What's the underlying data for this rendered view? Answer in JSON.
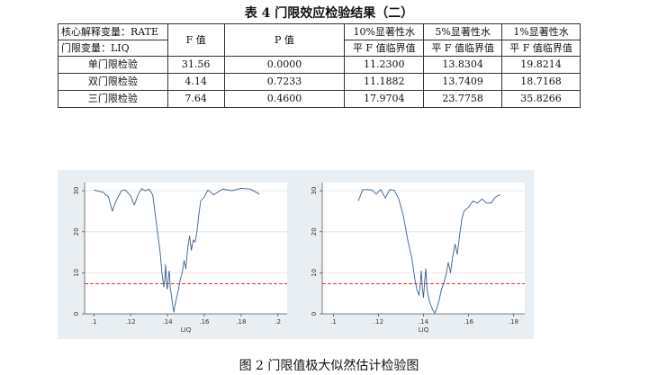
{
  "table": {
    "title": "表 4  门限效应检验结果（二）",
    "header_col1_line1": "核心解释变量：RATE",
    "header_col1_line2": "门限变量：LIQ",
    "columns": [
      "F 值",
      "P 值"
    ],
    "crit_headers": [
      {
        "line1": "10%显著性水",
        "line2": "平 F 值临界值"
      },
      {
        "line1": "5%显著性水",
        "line2": "平 F 值临界值"
      },
      {
        "line1": "1%显著性水",
        "line2": "平 F 值临界值"
      }
    ],
    "rows": [
      {
        "label": "单门限检验",
        "f": "31.56",
        "p": "0.0000",
        "c10": "11.2300",
        "c5": "13.8304",
        "c1": "19.8214"
      },
      {
        "label": "双门限检验",
        "f": "4.14",
        "p": "0.7233",
        "c10": "11.1882",
        "c5": "13.7409",
        "c1": "18.7168"
      },
      {
        "label": "三门限检验",
        "f": "7.64",
        "p": "0.4600",
        "c10": "17.9704",
        "c5": "23.7758",
        "c1": "35.8266"
      }
    ]
  },
  "figure": {
    "caption": "图 2  门限值极大似然估计检验图"
  },
  "chart_data": [
    {
      "type": "line",
      "title": "",
      "xlabel": "LIQ",
      "ylabel": "",
      "xlim": [
        0.095,
        0.205
      ],
      "ylim": [
        0,
        32
      ],
      "xticks": [
        ".1",
        ".12",
        ".14",
        ".16",
        ".18",
        ".2"
      ],
      "xtick_values": [
        0.1,
        0.12,
        0.14,
        0.16,
        0.18,
        0.2
      ],
      "yticks": [
        "0",
        "10",
        "20",
        "30"
      ],
      "ytick_values": [
        0,
        10,
        20,
        30
      ],
      "grid": "horizontal",
      "reference_line": {
        "y": 7.35,
        "color": "#cc2222",
        "style": "dashed"
      },
      "line_color": "#3a5f8a",
      "x": [
        0.1,
        0.105,
        0.108,
        0.11,
        0.112,
        0.115,
        0.117,
        0.12,
        0.122,
        0.124,
        0.126,
        0.128,
        0.13,
        0.132,
        0.134,
        0.136,
        0.137,
        0.138,
        0.1385,
        0.139,
        0.1395,
        0.14,
        0.1405,
        0.141,
        0.1415,
        0.142,
        0.143,
        0.1435,
        0.144,
        0.145,
        0.146,
        0.147,
        0.148,
        0.149,
        0.15,
        0.151,
        0.152,
        0.153,
        0.154,
        0.155,
        0.156,
        0.157,
        0.158,
        0.16,
        0.162,
        0.165,
        0.17,
        0.175,
        0.18,
        0.185,
        0.19
      ],
      "y": [
        30.2,
        29.6,
        28.5,
        25.0,
        27.5,
        30.0,
        30.2,
        28.8,
        26.5,
        29.0,
        30.5,
        30.0,
        30.4,
        29.0,
        22.0,
        15.0,
        10.0,
        6.5,
        8.5,
        12.0,
        7.0,
        6.0,
        9.0,
        10.5,
        6.5,
        5.0,
        1.5,
        0.4,
        2.0,
        4.0,
        6.0,
        8.5,
        10.0,
        13.0,
        11.0,
        16.0,
        19.0,
        15.5,
        18.0,
        17.5,
        20.0,
        24.0,
        27.5,
        28.5,
        30.2,
        29.0,
        30.4,
        30.0,
        30.6,
        30.4,
        29.2
      ]
    },
    {
      "type": "line",
      "title": "",
      "xlabel": "LIQ",
      "ylabel": "",
      "xlim": [
        0.095,
        0.185
      ],
      "ylim": [
        0,
        32
      ],
      "xticks": [
        ".1",
        ".12",
        ".14",
        ".16",
        ".18"
      ],
      "xtick_values": [
        0.1,
        0.12,
        0.14,
        0.16,
        0.18
      ],
      "yticks": [
        "0",
        "10",
        "20",
        "30"
      ],
      "ytick_values": [
        0,
        10,
        20,
        30
      ],
      "grid": "horizontal",
      "reference_line": {
        "y": 7.35,
        "color": "#cc2222",
        "style": "dashed"
      },
      "line_color": "#3a5f8a",
      "x": [
        0.111,
        0.113,
        0.115,
        0.117,
        0.119,
        0.121,
        0.123,
        0.125,
        0.127,
        0.129,
        0.131,
        0.133,
        0.135,
        0.136,
        0.137,
        0.138,
        0.1385,
        0.139,
        0.1395,
        0.14,
        0.1405,
        0.141,
        0.1415,
        0.142,
        0.143,
        0.144,
        0.145,
        0.146,
        0.147,
        0.148,
        0.149,
        0.15,
        0.151,
        0.152,
        0.153,
        0.154,
        0.155,
        0.156,
        0.157,
        0.158,
        0.16,
        0.162,
        0.164,
        0.166,
        0.168,
        0.17,
        0.172,
        0.174
      ],
      "y": [
        27.5,
        30.3,
        30.3,
        30.2,
        29.2,
        30.3,
        28.2,
        30.3,
        30.1,
        28.0,
        24.0,
        18.0,
        13.0,
        9.0,
        6.0,
        4.5,
        7.0,
        10.5,
        6.0,
        4.0,
        8.0,
        11.0,
        6.5,
        4.5,
        2.5,
        1.0,
        0.2,
        1.5,
        3.5,
        6.0,
        7.5,
        9.5,
        12.5,
        10.0,
        14.0,
        17.0,
        14.5,
        19.0,
        23.0,
        25.0,
        26.0,
        27.5,
        27.0,
        28.0,
        27.0,
        27.0,
        28.5,
        29.0
      ]
    }
  ]
}
